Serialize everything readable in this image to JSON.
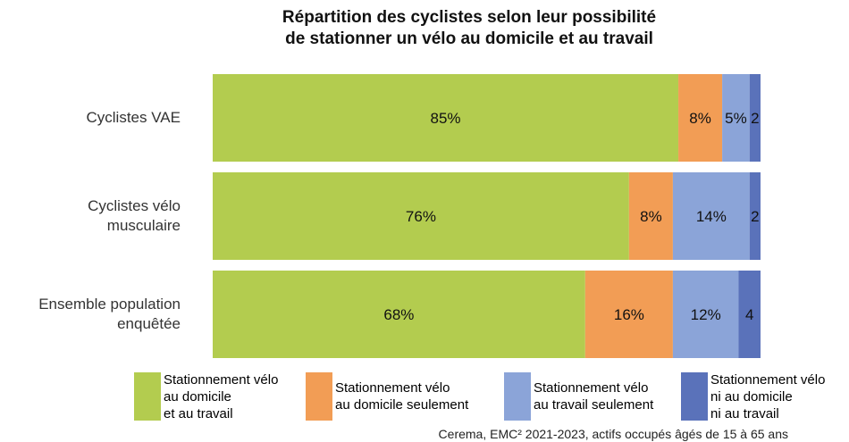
{
  "chart_data": {
    "type": "bar",
    "orientation": "horizontal",
    "stacked": true,
    "percent_stacked": true,
    "title": "Répartition des cyclistes selon leur possibilité de stationner un vélo au domicile et au travail",
    "title_lines": [
      "Répartition des cyclistes selon leur possibilité",
      "de stationner un vélo au domicile et au travail"
    ],
    "categories": [
      "Cyclistes VAE",
      "Cyclistes vélo musculaire",
      "Ensemble population enquêtée"
    ],
    "category_lines": [
      [
        "Cyclistes VAE"
      ],
      [
        "Cyclistes vélo",
        "musculaire"
      ],
      [
        "Ensemble population",
        "enquêtée"
      ]
    ],
    "series": [
      {
        "name": "Stationnement vélo au domicile et au travail",
        "name_lines": [
          "Stationnement vélo",
          "au domicile",
          "et au travail"
        ],
        "color": "#b3cc4f",
        "values": [
          85,
          76,
          68
        ],
        "labels": [
          "85%",
          "76%",
          "68%"
        ]
      },
      {
        "name": "Stationnement vélo au domicile seulement",
        "name_lines": [
          "Stationnement vélo",
          "au domicile seulement"
        ],
        "color": "#f29d55",
        "values": [
          8,
          8,
          16
        ],
        "labels": [
          "8%",
          "8%",
          "16%"
        ]
      },
      {
        "name": "Stationnement vélo au travail seulement",
        "name_lines": [
          "Stationnement vélo",
          "au travail seulement"
        ],
        "color": "#8ba4d8",
        "values": [
          5,
          14,
          12
        ],
        "labels": [
          "5%",
          "14%",
          "12%"
        ]
      },
      {
        "name": "Stationnement vélo ni au domicile ni au travail",
        "name_lines": [
          "Stationnement vélo",
          "ni au domicile",
          "ni au travail"
        ],
        "color": "#5a72ba",
        "values": [
          2,
          2,
          4
        ],
        "labels": [
          "2",
          "2",
          "4"
        ]
      }
    ],
    "xlim": [
      0,
      100
    ],
    "grid": false,
    "legend": "bottom",
    "source": "Cerema, EMC² 2021-2023, actifs occupés âgés de 15 à 65 ans"
  }
}
